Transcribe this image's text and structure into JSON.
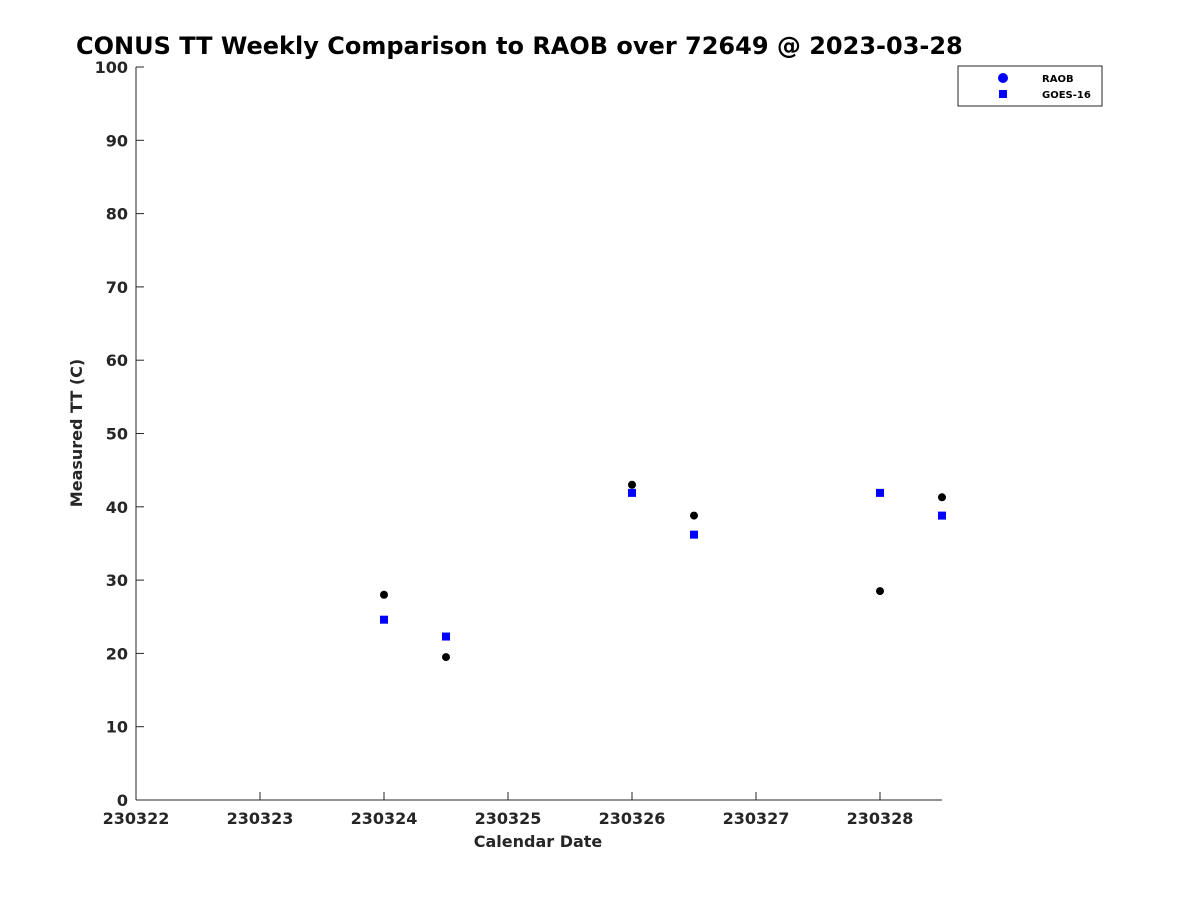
{
  "chart_data": {
    "type": "scatter",
    "title": "CONUS TT Weekly Comparison to RAOB over 72649 @ 2023-03-28",
    "xlabel": "Calendar Date",
    "ylabel": "Measured TT (C)",
    "xlim": [
      "2023-03-22",
      "2023-03-28 12:00"
    ],
    "ylim": [
      0,
      100
    ],
    "x_ticks": [
      {
        "date": "2023-03-22",
        "label": "230322"
      },
      {
        "date": "2023-03-23",
        "label": "230323"
      },
      {
        "date": "2023-03-24",
        "label": "230324"
      },
      {
        "date": "2023-03-25",
        "label": "230325"
      },
      {
        "date": "2023-03-26",
        "label": "230326"
      },
      {
        "date": "2023-03-27",
        "label": "230327"
      },
      {
        "date": "2023-03-28",
        "label": "230328"
      }
    ],
    "y_ticks": [
      "0",
      "10",
      "20",
      "30",
      "40",
      "50",
      "60",
      "70",
      "80",
      "90",
      "100"
    ],
    "grid": false,
    "legend_position": "top-right",
    "series": [
      {
        "name": "RAOB",
        "marker": "circle",
        "legend_color": "#0000ff",
        "color": "#000000",
        "x": [
          "2023-03-24 00:00",
          "2023-03-24 12:00",
          "2023-03-26 00:00",
          "2023-03-26 12:00",
          "2023-03-28 00:00",
          "2023-03-28 12:00"
        ],
        "y": [
          28.0,
          19.5,
          43.0,
          38.8,
          28.5,
          41.3
        ]
      },
      {
        "name": "GOES-16",
        "marker": "square",
        "legend_color": "#0000ff",
        "color": "#0000ff",
        "x": [
          "2023-03-24 00:00",
          "2023-03-24 12:00",
          "2023-03-26 00:00",
          "2023-03-26 12:00",
          "2023-03-28 00:00",
          "2023-03-28 12:00"
        ],
        "y": [
          24.6,
          22.3,
          41.9,
          36.2,
          41.9,
          38.8
        ]
      }
    ]
  }
}
